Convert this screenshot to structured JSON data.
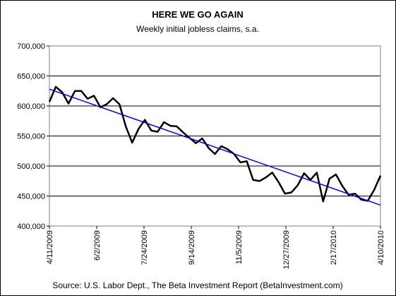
{
  "chart_data": {
    "type": "line",
    "title": "HERE WE GO AGAIN",
    "subtitle": "Weekly initial jobless claims, s.a.",
    "source": "Source: U.S. Labor Dept., The Beta Investment Report (BetaInvestment.com)",
    "ylim": [
      400000,
      700000
    ],
    "y_ticks": [
      400000,
      450000,
      500000,
      550000,
      600000,
      650000,
      700000
    ],
    "y_tick_labels": [
      "400,000",
      "450,000",
      "500,000",
      "550,000",
      "600,000",
      "650,000",
      "700,000"
    ],
    "x_range": [
      "2009-04-11",
      "2010-04-10"
    ],
    "x_ticks": [
      "2009-04-11",
      "2009-06-02",
      "2009-07-24",
      "2009-09-14",
      "2009-11-05",
      "2009-12-27",
      "2010-02-17",
      "2010-04-10"
    ],
    "x_tick_labels": [
      "4/11/2009",
      "6/2/2009",
      "7/24/2009",
      "9/14/2009",
      "11/5/2009",
      "12/27/2009",
      "2/17/2010",
      "4/10/2010"
    ],
    "grid": "horizontal",
    "legend": "none",
    "series": [
      {
        "color": "#000000",
        "x": [
          "2009-04-11",
          "2009-04-18",
          "2009-04-25",
          "2009-05-02",
          "2009-05-09",
          "2009-05-16",
          "2009-05-23",
          "2009-05-30",
          "2009-06-06",
          "2009-06-13",
          "2009-06-20",
          "2009-06-27",
          "2009-07-04",
          "2009-07-11",
          "2009-07-18",
          "2009-07-25",
          "2009-08-01",
          "2009-08-08",
          "2009-08-15",
          "2009-08-22",
          "2009-08-29",
          "2009-09-05",
          "2009-09-12",
          "2009-09-19",
          "2009-09-26",
          "2009-10-03",
          "2009-10-10",
          "2009-10-17",
          "2009-10-24",
          "2009-10-31",
          "2009-11-07",
          "2009-11-14",
          "2009-11-21",
          "2009-11-28",
          "2009-12-05",
          "2009-12-12",
          "2009-12-19",
          "2009-12-26",
          "2010-01-02",
          "2010-01-09",
          "2010-01-16",
          "2010-01-23",
          "2010-01-30",
          "2010-02-06",
          "2010-02-13",
          "2010-02-20",
          "2010-02-27",
          "2010-03-06",
          "2010-03-13",
          "2010-03-20",
          "2010-03-27",
          "2010-04-03",
          "2010-04-10"
        ],
        "values": [
          607000,
          632000,
          623000,
          604000,
          625000,
          625000,
          612000,
          617000,
          598000,
          603000,
          613000,
          603000,
          566000,
          539000,
          562000,
          577000,
          559000,
          557000,
          573000,
          567000,
          566000,
          556000,
          547000,
          538000,
          546000,
          530000,
          520000,
          533000,
          528000,
          520000,
          506000,
          508000,
          477000,
          475000,
          481000,
          489000,
          473000,
          454000,
          456000,
          468000,
          488000,
          477000,
          489000,
          441000,
          479000,
          486000,
          467000,
          452000,
          454000,
          444000,
          442000,
          460000,
          484000
        ]
      },
      {
        "color": "#0000ff",
        "type": "trend",
        "x": [
          "2009-04-11",
          "2010-04-10"
        ],
        "values": [
          628000,
          435000
        ]
      }
    ]
  }
}
